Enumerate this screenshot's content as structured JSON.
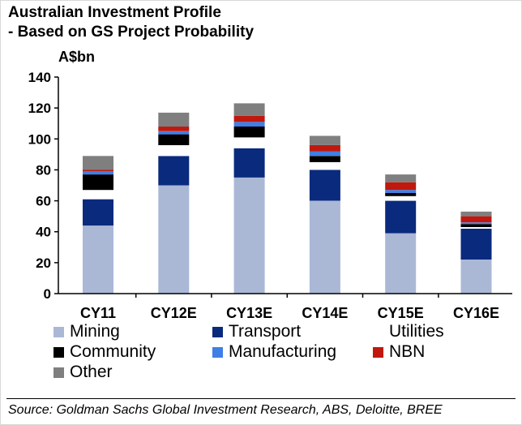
{
  "title_line1": "Australian Investment Profile",
  "title_line2": "- Based on GS Project Probability",
  "source": "Source: Goldman Sachs Global Investment Research, ABS, Deloitte, BREE",
  "colors": {
    "Mining": "#aab8d6",
    "Transport": "#0a2a7e",
    "Utilities": "#ffffff",
    "Community": "#000000",
    "Manufacturing": "#3f7fe6",
    "NBN": "#c0180e",
    "Other": "#7f7f7f"
  },
  "chart_data": {
    "type": "bar",
    "stacked": true,
    "title": "Australian Investment Profile - Based on GS Project Probability",
    "ylabel": "A$bn",
    "xlabel": "",
    "ylim": [
      0,
      140
    ],
    "yticks": [
      0,
      20,
      40,
      60,
      80,
      100,
      120,
      140
    ],
    "grid": false,
    "legend_position": "bottom",
    "categories": [
      "CY11",
      "CY12E",
      "CY13E",
      "CY14E",
      "CY15E",
      "CY16E"
    ],
    "series": [
      {
        "name": "Mining",
        "values": [
          44,
          70,
          75,
          60,
          39,
          22
        ]
      },
      {
        "name": "Transport",
        "values": [
          17,
          19,
          19,
          20,
          21,
          20
        ]
      },
      {
        "name": "Utilities",
        "values": [
          6,
          7,
          7,
          5,
          3,
          1
        ]
      },
      {
        "name": "Community",
        "values": [
          10,
          7,
          7,
          4,
          2,
          2
        ]
      },
      {
        "name": "Manufacturing",
        "values": [
          2,
          2,
          3,
          3,
          2,
          1
        ]
      },
      {
        "name": "NBN",
        "values": [
          1,
          3,
          4,
          4,
          5,
          4
        ]
      },
      {
        "name": "Other",
        "values": [
          9,
          9,
          8,
          6,
          5,
          3
        ]
      }
    ]
  }
}
